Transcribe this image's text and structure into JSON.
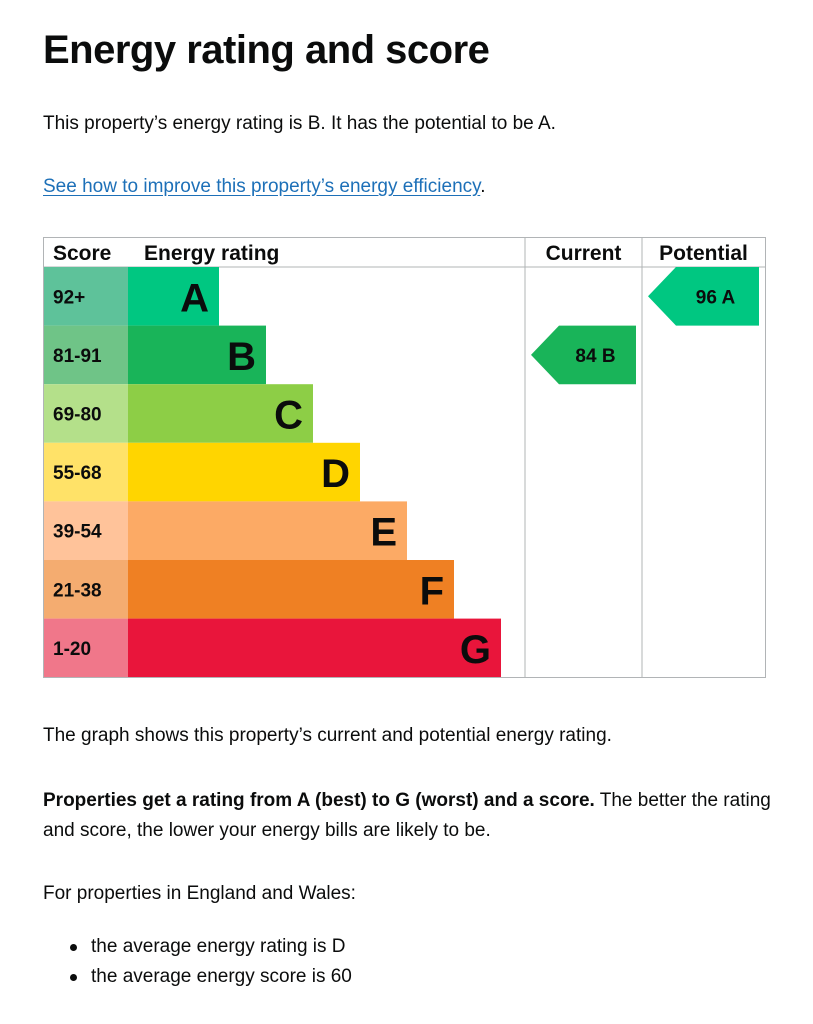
{
  "page": {
    "title": "Energy rating and score",
    "intro": "This property’s energy rating is B. It has the potential to be A.",
    "improve_link": "See how to improve this property’s energy efficiency",
    "improve_link_suffix": ".",
    "graph_note": "The graph shows this property’s current and potential energy rating.",
    "rating_bold": "Properties get a rating from A (best) to G (worst) and a score.",
    "rating_rest": " The better the rating and score, the lower your energy bills are likely to be.",
    "region_intro": "For properties in England and Wales:",
    "averages": [
      "the average energy rating is D",
      "the average energy score is 60"
    ]
  },
  "chart_data": {
    "type": "bar",
    "headers": {
      "score": "Score",
      "rating": "Energy rating",
      "current": "Current",
      "potential": "Potential"
    },
    "bands": [
      {
        "letter": "A",
        "range": "92+",
        "score_color": "#5ec29a",
        "bar_color": "#00c781"
      },
      {
        "letter": "B",
        "range": "81-91",
        "score_color": "#6fc487",
        "bar_color": "#19b459"
      },
      {
        "letter": "C",
        "range": "69-80",
        "score_color": "#b4e08a",
        "bar_color": "#8dce46"
      },
      {
        "letter": "D",
        "range": "55-68",
        "score_color": "#ffe268",
        "bar_color": "#ffd500"
      },
      {
        "letter": "E",
        "range": "39-54",
        "score_color": "#ffc39a",
        "bar_color": "#fcaa65"
      },
      {
        "letter": "F",
        "range": "21-38",
        "score_color": "#f4ac70",
        "bar_color": "#ef8023"
      },
      {
        "letter": "G",
        "range": "1-20",
        "score_color": "#f0778a",
        "bar_color": "#e9153b"
      }
    ],
    "current": {
      "score": 84,
      "letter": "B",
      "color": "#19b459"
    },
    "potential": {
      "score": 96,
      "letter": "A",
      "color": "#00c781"
    }
  }
}
